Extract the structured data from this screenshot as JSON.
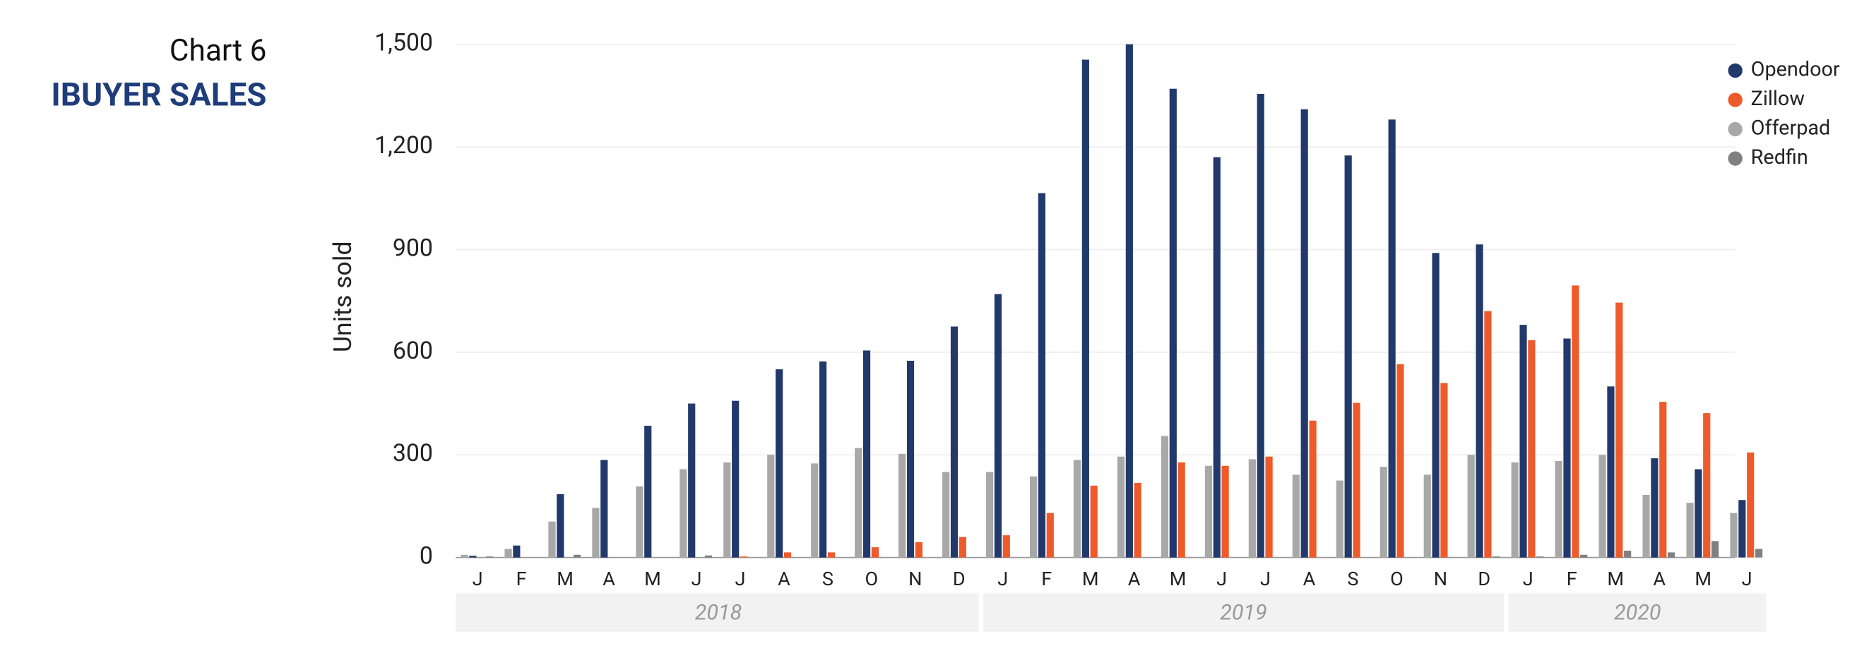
{
  "chart_data": {
    "type": "bar",
    "title": "Chart 6",
    "subtitle": "IBUYER SALES",
    "y_label": "Units sold",
    "groups": [
      {
        "label": "2018",
        "categories": [
          "J",
          "F",
          "M",
          "A",
          "M",
          "J",
          "J",
          "A",
          "S",
          "O",
          "N",
          "D"
        ]
      },
      {
        "label": "2019",
        "categories": [
          "J",
          "F",
          "M",
          "A",
          "M",
          "J",
          "J",
          "A",
          "S",
          "O",
          "N",
          "D"
        ]
      },
      {
        "label": "2020",
        "categories": [
          "J",
          "F",
          "M",
          "A",
          "M",
          "J"
        ]
      }
    ],
    "series": [
      {
        "name": "Opendoor",
        "color": "#22396b",
        "values": [
          5,
          35,
          185,
          285,
          385,
          450,
          458,
          550,
          573,
          605,
          575,
          675,
          770,
          1065,
          1455,
          1500,
          1370,
          1170,
          1355,
          1310,
          1175,
          1280,
          890,
          915,
          680,
          640,
          500,
          290,
          258,
          168
        ]
      },
      {
        "name": "Zillow",
        "color": "#ee5a2a",
        "values": [
          0,
          0,
          0,
          0,
          0,
          0,
          3,
          15,
          15,
          30,
          45,
          60,
          65,
          130,
          210,
          218,
          278,
          268,
          295,
          400,
          452,
          565,
          510,
          720,
          635,
          795,
          745,
          455,
          422,
          307
        ]
      },
      {
        "name": "Offerpad",
        "color": "#a8a8a8",
        "values": [
          8,
          25,
          105,
          145,
          208,
          258,
          278,
          300,
          275,
          320,
          303,
          250,
          250,
          237,
          285,
          295,
          355,
          268,
          287,
          242,
          225,
          265,
          242,
          300,
          278,
          282,
          300,
          183,
          160,
          130
        ]
      },
      {
        "name": "Redfin",
        "color": "#808080",
        "values": [
          3,
          0,
          8,
          0,
          0,
          6,
          0,
          0,
          0,
          0,
          0,
          0,
          0,
          0,
          0,
          0,
          0,
          0,
          0,
          0,
          0,
          0,
          0,
          3,
          3,
          8,
          20,
          15,
          48,
          25
        ]
      }
    ],
    "ylim": [
      0,
      1500
    ],
    "yticks": [
      0,
      300,
      600,
      900,
      {
        "value": 1200,
        "label": "1,200"
      },
      {
        "value": 1500,
        "label": "1,500"
      }
    ],
    "grid": true,
    "legend": "top-right"
  }
}
